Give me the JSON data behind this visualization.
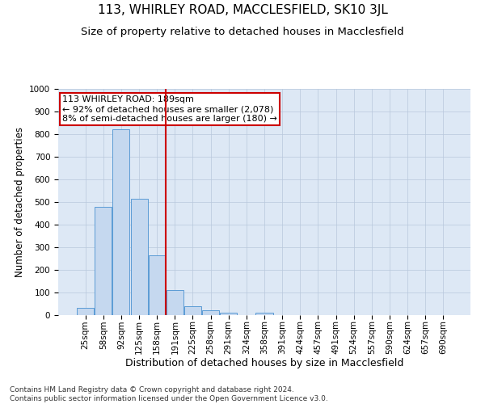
{
  "title": "113, WHIRLEY ROAD, MACCLESFIELD, SK10 3JL",
  "subtitle": "Size of property relative to detached houses in Macclesfield",
  "xlabel": "Distribution of detached houses by size in Macclesfield",
  "ylabel": "Number of detached properties",
  "footer_line1": "Contains HM Land Registry data © Crown copyright and database right 2024.",
  "footer_line2": "Contains public sector information licensed under the Open Government Licence v3.0.",
  "categories": [
    "25sqm",
    "58sqm",
    "92sqm",
    "125sqm",
    "158sqm",
    "191sqm",
    "225sqm",
    "258sqm",
    "291sqm",
    "324sqm",
    "358sqm",
    "391sqm",
    "424sqm",
    "457sqm",
    "491sqm",
    "524sqm",
    "557sqm",
    "590sqm",
    "624sqm",
    "657sqm",
    "690sqm"
  ],
  "values": [
    33,
    478,
    820,
    515,
    265,
    110,
    40,
    22,
    12,
    0,
    10,
    0,
    0,
    0,
    0,
    0,
    0,
    0,
    0,
    0,
    0
  ],
  "bar_color": "#c5d8ef",
  "bar_edge_color": "#5b9bd5",
  "red_line_index": 5,
  "annotation_line1": "113 WHIRLEY ROAD: 189sqm",
  "annotation_line2": "← 92% of detached houses are smaller (2,078)",
  "annotation_line3": "8% of semi-detached houses are larger (180) →",
  "annotation_box_color": "#ffffff",
  "annotation_box_edge": "#cc0000",
  "red_line_color": "#cc0000",
  "ylim": [
    0,
    1000
  ],
  "yticks": [
    0,
    100,
    200,
    300,
    400,
    500,
    600,
    700,
    800,
    900,
    1000
  ],
  "title_fontsize": 11,
  "subtitle_fontsize": 9.5,
  "xlabel_fontsize": 9,
  "ylabel_fontsize": 8.5,
  "tick_fontsize": 7.5,
  "annotation_fontsize": 8,
  "background_color": "#ffffff",
  "plot_bg_color": "#dde8f5",
  "grid_color": "#b8c8dc"
}
